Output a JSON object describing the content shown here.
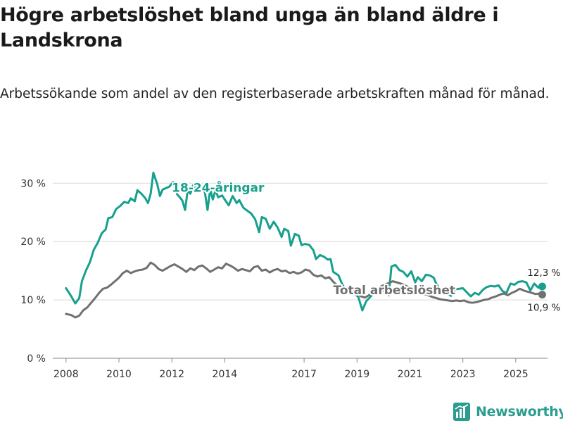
{
  "title": "Högre arbetslöshet bland unga än bland äldre i Landskrona",
  "subtitle": "Arbetssökande som andel av den registerbaserade arbetskraften månad för månad.",
  "brand": {
    "name": "Newsworthy",
    "icon": "newsworthy-logo-icon",
    "color": "#2a9d8f"
  },
  "chart_data": {
    "type": "line",
    "title": "Högre arbetslöshet bland unga än bland äldre i Landskrona",
    "ylabel": "",
    "xlabel": "",
    "x_range": [
      2007.5,
      2026.2
    ],
    "ylim": [
      0,
      31
    ],
    "y_ticks": [
      0,
      10,
      20,
      30
    ],
    "y_tick_labels": [
      "0 %",
      "10 %",
      "20 %",
      "30 %"
    ],
    "x_ticks": [
      2008,
      2010,
      2012,
      2014,
      2017,
      2019,
      2021,
      2023,
      2025
    ],
    "x_tick_labels": [
      "2008",
      "2010",
      "2012",
      "2014",
      "2017",
      "2019",
      "2021",
      "2023",
      "2025"
    ],
    "grid": "horizontal",
    "series": [
      {
        "name": "18-24-åringar",
        "color": "#16a08d",
        "end_label": "12,3 %",
        "points": [
          [
            2008.0,
            12.0
          ],
          [
            2008.2,
            10.6
          ],
          [
            2008.35,
            9.4
          ],
          [
            2008.5,
            10.3
          ],
          [
            2008.6,
            13.2
          ],
          [
            2008.75,
            15.0
          ],
          [
            2008.9,
            16.4
          ],
          [
            2009.05,
            18.6
          ],
          [
            2009.2,
            19.8
          ],
          [
            2009.35,
            21.4
          ],
          [
            2009.5,
            22.1
          ],
          [
            2009.6,
            24.0
          ],
          [
            2009.75,
            24.2
          ],
          [
            2009.9,
            25.6
          ],
          [
            2010.05,
            26.1
          ],
          [
            2010.2,
            26.8
          ],
          [
            2010.35,
            26.6
          ],
          [
            2010.45,
            27.4
          ],
          [
            2010.6,
            26.9
          ],
          [
            2010.7,
            28.8
          ],
          [
            2010.85,
            28.2
          ],
          [
            2011.0,
            27.4
          ],
          [
            2011.1,
            26.6
          ],
          [
            2011.2,
            28.2
          ],
          [
            2011.3,
            31.8
          ],
          [
            2011.45,
            29.8
          ],
          [
            2011.55,
            27.8
          ],
          [
            2011.65,
            28.9
          ],
          [
            2011.8,
            29.2
          ],
          [
            2011.9,
            29.4
          ],
          [
            2012.05,
            30.2
          ],
          [
            2012.2,
            28.1
          ],
          [
            2012.3,
            27.6
          ],
          [
            2012.4,
            27.0
          ],
          [
            2012.5,
            25.4
          ],
          [
            2012.6,
            28.8
          ],
          [
            2012.7,
            28.2
          ],
          [
            2012.8,
            29.6
          ],
          [
            2012.95,
            29.2
          ],
          [
            2013.05,
            29.0
          ],
          [
            2013.15,
            29.3
          ],
          [
            2013.25,
            28.4
          ],
          [
            2013.35,
            25.4
          ],
          [
            2013.45,
            29.0
          ],
          [
            2013.55,
            27.2
          ],
          [
            2013.65,
            28.8
          ],
          [
            2013.75,
            27.6
          ],
          [
            2013.9,
            27.9
          ],
          [
            2014.0,
            27.2
          ],
          [
            2014.15,
            26.2
          ],
          [
            2014.3,
            27.8
          ],
          [
            2014.45,
            26.6
          ],
          [
            2014.55,
            27.1
          ],
          [
            2014.7,
            25.8
          ],
          [
            2014.85,
            25.3
          ],
          [
            2015.0,
            24.8
          ],
          [
            2015.15,
            23.8
          ],
          [
            2015.3,
            21.6
          ],
          [
            2015.4,
            24.2
          ],
          [
            2015.55,
            23.9
          ],
          [
            2015.7,
            22.2
          ],
          [
            2015.85,
            23.4
          ],
          [
            2016.0,
            22.4
          ],
          [
            2016.15,
            20.8
          ],
          [
            2016.25,
            22.2
          ],
          [
            2016.4,
            21.8
          ],
          [
            2016.5,
            19.3
          ],
          [
            2016.65,
            21.3
          ],
          [
            2016.8,
            21.0
          ],
          [
            2016.9,
            19.4
          ],
          [
            2017.05,
            19.6
          ],
          [
            2017.2,
            19.4
          ],
          [
            2017.35,
            18.5
          ],
          [
            2017.45,
            17.0
          ],
          [
            2017.6,
            17.7
          ],
          [
            2017.75,
            17.4
          ],
          [
            2017.9,
            16.9
          ],
          [
            2018.0,
            17.0
          ],
          [
            2018.1,
            14.8
          ],
          [
            2018.3,
            14.2
          ],
          [
            2018.45,
            12.6
          ],
          [
            2018.6,
            11.6
          ],
          [
            2018.75,
            12.4
          ],
          [
            2018.9,
            11.1
          ],
          [
            2019.05,
            10.5
          ],
          [
            2019.2,
            8.2
          ],
          [
            2019.35,
            9.8
          ],
          [
            2019.5,
            10.5
          ],
          [
            2019.65,
            11.3
          ],
          [
            2019.8,
            11.9
          ],
          [
            2019.95,
            12.4
          ],
          [
            2020.05,
            11.2
          ],
          [
            2020.2,
            10.8
          ],
          [
            2020.3,
            15.7
          ],
          [
            2020.45,
            16.0
          ],
          [
            2020.6,
            15.1
          ],
          [
            2020.75,
            14.8
          ],
          [
            2020.9,
            14.0
          ],
          [
            2021.05,
            14.9
          ],
          [
            2021.2,
            13.0
          ],
          [
            2021.3,
            13.9
          ],
          [
            2021.45,
            13.2
          ],
          [
            2021.6,
            14.3
          ],
          [
            2021.75,
            14.2
          ],
          [
            2021.9,
            13.8
          ],
          [
            2022.0,
            12.7
          ],
          [
            2022.15,
            11.8
          ],
          [
            2022.3,
            11.5
          ],
          [
            2022.45,
            11.0
          ],
          [
            2022.55,
            10.7
          ],
          [
            2022.7,
            11.8
          ],
          [
            2022.85,
            11.9
          ],
          [
            2023.0,
            12.0
          ],
          [
            2023.15,
            11.3
          ],
          [
            2023.3,
            10.6
          ],
          [
            2023.45,
            11.2
          ],
          [
            2023.6,
            10.9
          ],
          [
            2023.75,
            11.7
          ],
          [
            2023.9,
            12.2
          ],
          [
            2024.05,
            12.4
          ],
          [
            2024.2,
            12.3
          ],
          [
            2024.35,
            12.5
          ],
          [
            2024.5,
            11.5
          ],
          [
            2024.65,
            11.2
          ],
          [
            2024.8,
            12.8
          ],
          [
            2024.95,
            12.6
          ],
          [
            2025.1,
            13.1
          ],
          [
            2025.25,
            13.2
          ],
          [
            2025.4,
            13.0
          ],
          [
            2025.55,
            11.6
          ],
          [
            2025.7,
            12.8
          ],
          [
            2025.85,
            12.1
          ],
          [
            2026.0,
            12.3
          ]
        ]
      },
      {
        "name": "Total arbetslöshet",
        "color": "#707070",
        "end_label": "10,9 %",
        "points": [
          [
            2008.0,
            7.6
          ],
          [
            2008.2,
            7.4
          ],
          [
            2008.35,
            7.0
          ],
          [
            2008.5,
            7.3
          ],
          [
            2008.65,
            8.2
          ],
          [
            2008.8,
            8.7
          ],
          [
            2008.95,
            9.5
          ],
          [
            2009.1,
            10.3
          ],
          [
            2009.25,
            11.2
          ],
          [
            2009.4,
            11.9
          ],
          [
            2009.55,
            12.1
          ],
          [
            2009.7,
            12.6
          ],
          [
            2009.85,
            13.2
          ],
          [
            2010.0,
            13.8
          ],
          [
            2010.15,
            14.6
          ],
          [
            2010.3,
            15.0
          ],
          [
            2010.45,
            14.6
          ],
          [
            2010.6,
            14.9
          ],
          [
            2010.75,
            15.1
          ],
          [
            2010.9,
            15.2
          ],
          [
            2011.05,
            15.5
          ],
          [
            2011.2,
            16.4
          ],
          [
            2011.35,
            16.0
          ],
          [
            2011.5,
            15.3
          ],
          [
            2011.65,
            15.0
          ],
          [
            2011.8,
            15.4
          ],
          [
            2011.95,
            15.8
          ],
          [
            2012.1,
            16.1
          ],
          [
            2012.25,
            15.7
          ],
          [
            2012.4,
            15.3
          ],
          [
            2012.55,
            14.8
          ],
          [
            2012.7,
            15.4
          ],
          [
            2012.85,
            15.1
          ],
          [
            2013.0,
            15.7
          ],
          [
            2013.15,
            15.9
          ],
          [
            2013.3,
            15.4
          ],
          [
            2013.45,
            14.8
          ],
          [
            2013.6,
            15.2
          ],
          [
            2013.75,
            15.6
          ],
          [
            2013.9,
            15.4
          ],
          [
            2014.05,
            16.2
          ],
          [
            2014.2,
            15.9
          ],
          [
            2014.35,
            15.5
          ],
          [
            2014.5,
            15.0
          ],
          [
            2014.65,
            15.3
          ],
          [
            2014.8,
            15.1
          ],
          [
            2014.95,
            14.9
          ],
          [
            2015.1,
            15.6
          ],
          [
            2015.25,
            15.8
          ],
          [
            2015.4,
            15.0
          ],
          [
            2015.55,
            15.2
          ],
          [
            2015.7,
            14.7
          ],
          [
            2015.85,
            15.1
          ],
          [
            2016.0,
            15.3
          ],
          [
            2016.15,
            14.9
          ],
          [
            2016.3,
            15.0
          ],
          [
            2016.45,
            14.6
          ],
          [
            2016.6,
            14.8
          ],
          [
            2016.75,
            14.5
          ],
          [
            2016.9,
            14.7
          ],
          [
            2017.05,
            15.2
          ],
          [
            2017.2,
            15.0
          ],
          [
            2017.35,
            14.3
          ],
          [
            2017.5,
            14.0
          ],
          [
            2017.65,
            14.2
          ],
          [
            2017.8,
            13.7
          ],
          [
            2017.95,
            13.9
          ],
          [
            2018.1,
            13.1
          ],
          [
            2018.25,
            12.5
          ],
          [
            2018.4,
            12.0
          ],
          [
            2018.55,
            11.7
          ],
          [
            2018.7,
            11.3
          ],
          [
            2018.85,
            11.5
          ],
          [
            2019.0,
            11.2
          ],
          [
            2019.15,
            10.6
          ],
          [
            2019.3,
            10.4
          ],
          [
            2019.45,
            10.8
          ],
          [
            2019.6,
            11.4
          ],
          [
            2019.75,
            11.8
          ],
          [
            2019.9,
            12.3
          ],
          [
            2020.05,
            12.6
          ],
          [
            2020.2,
            12.9
          ],
          [
            2020.35,
            13.2
          ],
          [
            2020.5,
            13.0
          ],
          [
            2020.65,
            12.8
          ],
          [
            2020.8,
            12.5
          ],
          [
            2020.95,
            12.2
          ],
          [
            2021.1,
            12.0
          ],
          [
            2021.25,
            11.6
          ],
          [
            2021.4,
            11.2
          ],
          [
            2021.55,
            11.0
          ],
          [
            2021.7,
            10.8
          ],
          [
            2021.85,
            10.5
          ],
          [
            2022.0,
            10.3
          ],
          [
            2022.15,
            10.1
          ],
          [
            2022.3,
            10.0
          ],
          [
            2022.45,
            9.9
          ],
          [
            2022.6,
            9.8
          ],
          [
            2022.75,
            9.9
          ],
          [
            2022.9,
            9.8
          ],
          [
            2023.05,
            9.9
          ],
          [
            2023.2,
            9.6
          ],
          [
            2023.35,
            9.5
          ],
          [
            2023.5,
            9.6
          ],
          [
            2023.65,
            9.8
          ],
          [
            2023.8,
            10.0
          ],
          [
            2023.95,
            10.1
          ],
          [
            2024.1,
            10.4
          ],
          [
            2024.25,
            10.6
          ],
          [
            2024.4,
            10.9
          ],
          [
            2024.55,
            11.1
          ],
          [
            2024.7,
            10.8
          ],
          [
            2024.85,
            11.2
          ],
          [
            2025.0,
            11.5
          ],
          [
            2025.15,
            11.9
          ],
          [
            2025.3,
            11.6
          ],
          [
            2025.45,
            11.4
          ],
          [
            2025.6,
            11.2
          ],
          [
            2025.75,
            11.0
          ],
          [
            2025.9,
            11.1
          ],
          [
            2026.0,
            10.9
          ]
        ]
      }
    ]
  }
}
